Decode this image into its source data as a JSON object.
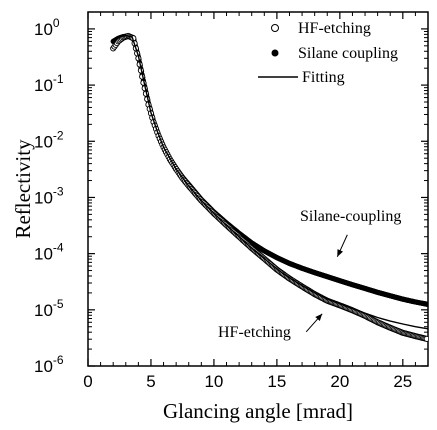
{
  "chart_data": {
    "type": "scatter",
    "title": "",
    "xlabel": "Glancing angle [mrad]",
    "ylabel": "Reflectivity",
    "xlim": [
      0,
      27
    ],
    "ylim": [
      1e-06,
      2
    ],
    "yscale": "log",
    "x_ticks": [
      0,
      5,
      10,
      15,
      20,
      25
    ],
    "y_ticks": [
      {
        "value": 1,
        "base": "10",
        "exp": "0"
      },
      {
        "value": 0.1,
        "base": "10",
        "exp": "-1"
      },
      {
        "value": 0.01,
        "base": "10",
        "exp": "-2"
      },
      {
        "value": 0.001,
        "base": "10",
        "exp": "-3"
      },
      {
        "value": 0.0001,
        "base": "10",
        "exp": "-4"
      },
      {
        "value": 1e-05,
        "base": "10",
        "exp": "-5"
      },
      {
        "value": 1e-06,
        "base": "10",
        "exp": "-6"
      }
    ],
    "grid": false,
    "legend_position": "top-right",
    "series": [
      {
        "name": "HF-etching",
        "marker": "open-circle",
        "x": [
          2.0,
          2.4,
          2.8,
          3.2,
          3.6,
          4.0,
          4.4,
          4.8,
          5.2,
          5.6,
          6.0,
          6.5,
          7.0,
          7.5,
          8.0,
          9.0,
          10.0,
          11.0,
          12.0,
          13.0,
          14.0,
          15.0,
          16.0,
          17.0,
          18.0,
          19.0,
          20.0,
          21.0,
          22.0,
          23.0,
          24.0,
          25.0,
          26.0,
          27.0
        ],
        "y": [
          0.45,
          0.6,
          0.7,
          0.75,
          0.68,
          0.3,
          0.11,
          0.045,
          0.022,
          0.0125,
          0.0078,
          0.0048,
          0.0032,
          0.0022,
          0.0016,
          0.00088,
          0.00052,
          0.00032,
          0.0002,
          0.000125,
          8.1e-05,
          5.2e-05,
          3.6e-05,
          2.6e-05,
          1.9e-05,
          1.45e-05,
          1.2e-05,
          9.8e-06,
          7.8e-06,
          6e-06,
          4.8e-06,
          3.9e-06,
          3.4e-06,
          3e-06
        ]
      },
      {
        "name": "Silane coupling",
        "marker": "filled-circle",
        "x": [
          2.0,
          2.4,
          2.8,
          3.2,
          3.6,
          4.0,
          4.4,
          4.8,
          5.2,
          5.6,
          6.0,
          6.5,
          7.0,
          7.5,
          8.0,
          9.0,
          10.0,
          11.0,
          12.0,
          13.0,
          14.0,
          15.0,
          16.0,
          17.0,
          18.0,
          19.0,
          20.0,
          21.0,
          22.0,
          23.0,
          24.0,
          25.0,
          26.0,
          27.0
        ],
        "y": [
          0.6,
          0.68,
          0.73,
          0.75,
          0.7,
          0.32,
          0.12,
          0.048,
          0.023,
          0.013,
          0.008,
          0.0049,
          0.0033,
          0.0023,
          0.0017,
          0.00092,
          0.00055,
          0.00035,
          0.00023,
          0.000155,
          0.000112,
          8.5e-05,
          6.7e-05,
          5.5e-05,
          4.6e-05,
          3.9e-05,
          3.3e-05,
          2.8e-05,
          2.4e-05,
          2.05e-05,
          1.78e-05,
          1.55e-05,
          1.38e-05,
          1.25e-05
        ]
      },
      {
        "name": "Fitting",
        "marker": "line",
        "x": [
          2.0,
          2.5,
          3.0,
          3.5,
          4.0,
          4.5,
          5.0,
          5.5,
          6.0,
          7.0,
          8.0,
          9.0,
          10.0,
          11.0,
          12.0,
          13.0,
          14.0,
          15.0,
          16.0,
          17.0,
          18.0,
          19.0,
          20.0,
          21.0,
          22.0,
          23.0,
          24.0,
          25.0,
          26.0,
          27.0
        ],
        "y": [
          0.65,
          0.72,
          0.76,
          0.72,
          0.33,
          0.1,
          0.032,
          0.015,
          0.0078,
          0.0032,
          0.0016,
          0.00088,
          0.00052,
          0.00032,
          0.0002,
          0.000125,
          8.2e-05,
          5.3e-05,
          3.7e-05,
          2.7e-05,
          2e-05,
          1.55e-05,
          1.28e-05,
          1.05e-05,
          8.7e-06,
          7.3e-06,
          6.3e-06,
          5.6e-06,
          5e-06,
          4.6e-06
        ]
      }
    ],
    "annotations": [
      {
        "text": "Silane-coupling",
        "x": 20.5,
        "y": 0.0003,
        "arrow_to": [
          19.8,
          8.8e-05
        ]
      },
      {
        "text": "HF-etching",
        "x": 16.5,
        "y": 1.8e-06,
        "arrow_to": [
          18.6,
          8.5e-06
        ]
      }
    ]
  }
}
